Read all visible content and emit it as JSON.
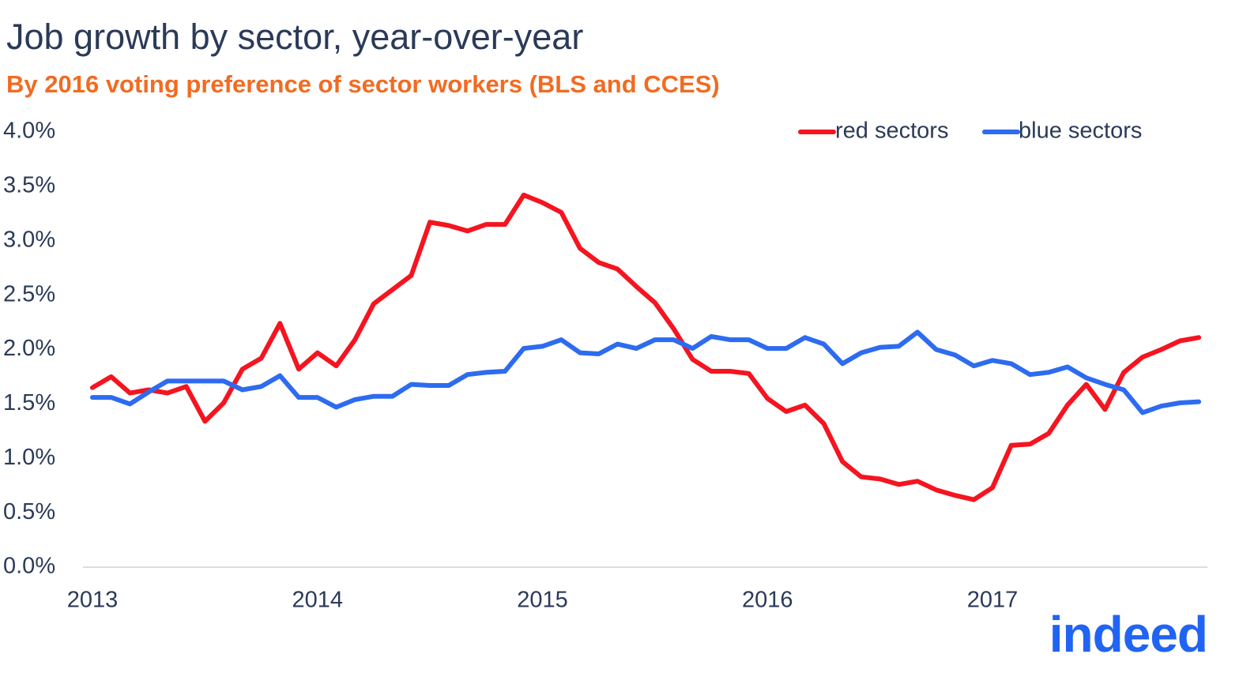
{
  "chart_data": {
    "type": "line",
    "title": "Job growth by sector, year-over-year",
    "subtitle": "By 2016 voting preference of sector workers (BLS and CCES)",
    "logo": "indeed",
    "categories": [
      "2013",
      null,
      null,
      null,
      null,
      null,
      null,
      null,
      null,
      null,
      null,
      null,
      "2014",
      null,
      null,
      null,
      null,
      null,
      null,
      null,
      null,
      null,
      null,
      null,
      "2015",
      null,
      null,
      null,
      null,
      null,
      null,
      null,
      null,
      null,
      null,
      null,
      "2016",
      null,
      null,
      null,
      null,
      null,
      null,
      null,
      null,
      null,
      null,
      null,
      "2017",
      null,
      null,
      null,
      null,
      null,
      null,
      null,
      null,
      null,
      null,
      null
    ],
    "series": [
      {
        "name": "red sectors",
        "color": "#f5141f",
        "values": [
          1.65,
          1.75,
          1.6,
          1.63,
          1.6,
          1.66,
          1.34,
          1.51,
          1.82,
          1.92,
          2.24,
          1.82,
          1.97,
          1.85,
          2.09,
          2.42,
          2.55,
          2.68,
          3.17,
          3.14,
          3.09,
          3.15,
          3.15,
          3.42,
          3.35,
          3.26,
          2.93,
          2.8,
          2.74,
          2.58,
          2.43,
          2.19,
          1.91,
          1.8,
          1.8,
          1.78,
          1.55,
          1.43,
          1.49,
          1.32,
          0.97,
          0.83,
          0.81,
          0.76,
          0.79,
          0.71,
          0.66,
          0.62,
          0.73,
          1.12,
          1.13,
          1.23,
          1.49,
          1.68,
          1.45,
          1.79,
          1.93,
          2.0,
          2.08,
          2.11
        ]
      },
      {
        "name": "blue sectors",
        "color": "#2d6bf0",
        "values": [
          1.56,
          1.56,
          1.5,
          1.61,
          1.71,
          1.71,
          1.71,
          1.71,
          1.63,
          1.66,
          1.76,
          1.56,
          1.56,
          1.47,
          1.54,
          1.57,
          1.57,
          1.68,
          1.67,
          1.67,
          1.77,
          1.79,
          1.8,
          2.01,
          2.03,
          2.09,
          1.97,
          1.96,
          2.05,
          2.01,
          2.09,
          2.09,
          2.01,
          2.12,
          2.09,
          2.09,
          2.01,
          2.01,
          2.11,
          2.05,
          1.87,
          1.97,
          2.02,
          2.03,
          2.16,
          2.0,
          1.95,
          1.85,
          1.9,
          1.87,
          1.77,
          1.79,
          1.84,
          1.74,
          1.68,
          1.63,
          1.42,
          1.48,
          1.51,
          1.52
        ]
      }
    ],
    "ylim": [
      0,
      4
    ],
    "yticks": [
      {
        "value": 0,
        "label": "0.0%"
      },
      {
        "value": 0.5,
        "label": "0.5%"
      },
      {
        "value": 1,
        "label": "1.0%"
      },
      {
        "value": 1.5,
        "label": "1.5%"
      },
      {
        "value": 2,
        "label": "2.0%"
      },
      {
        "value": 2.5,
        "label": "2.5%"
      },
      {
        "value": 3,
        "label": "3.0%"
      },
      {
        "value": 3.5,
        "label": "3.5%"
      },
      {
        "value": 4,
        "label": "4.0%"
      }
    ],
    "grid": false,
    "legend": "top-right"
  }
}
